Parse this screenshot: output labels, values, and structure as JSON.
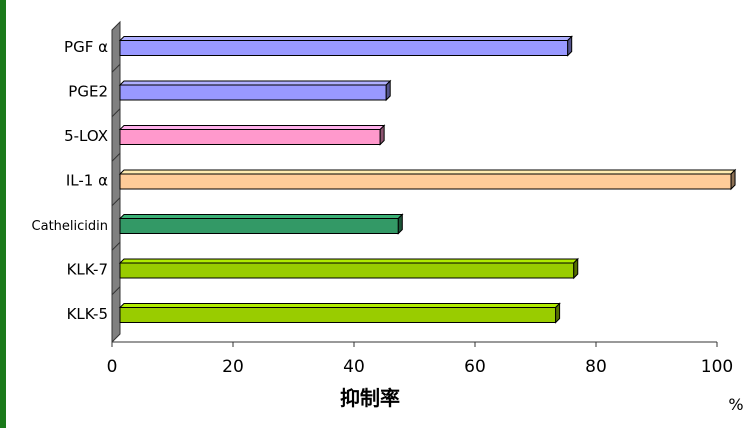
{
  "chart_data": {
    "type": "bar",
    "orientation": "horizontal",
    "categories": [
      "PGF α",
      "PGE2",
      "5-LOX",
      "IL-1 α",
      "Cathelicidin",
      "KLK-7",
      "KLK-5"
    ],
    "values": [
      74,
      44,
      43,
      101,
      46,
      75,
      72
    ],
    "bar_colors": [
      "#9999ff",
      "#9999ff",
      "#ff99cc",
      "#ffcc99",
      "#339966",
      "#99cc00",
      "#99cc00"
    ],
    "xticks": [
      "0",
      "20",
      "40",
      "60",
      "80",
      "100"
    ],
    "xlim": [
      0,
      100
    ],
    "xlabel": "抑制率",
    "unit_label": "%",
    "grid": false,
    "legend": "none"
  },
  "colors": {
    "accent": "#1a7a1a",
    "wall": "#808080",
    "axis": "#333333"
  }
}
